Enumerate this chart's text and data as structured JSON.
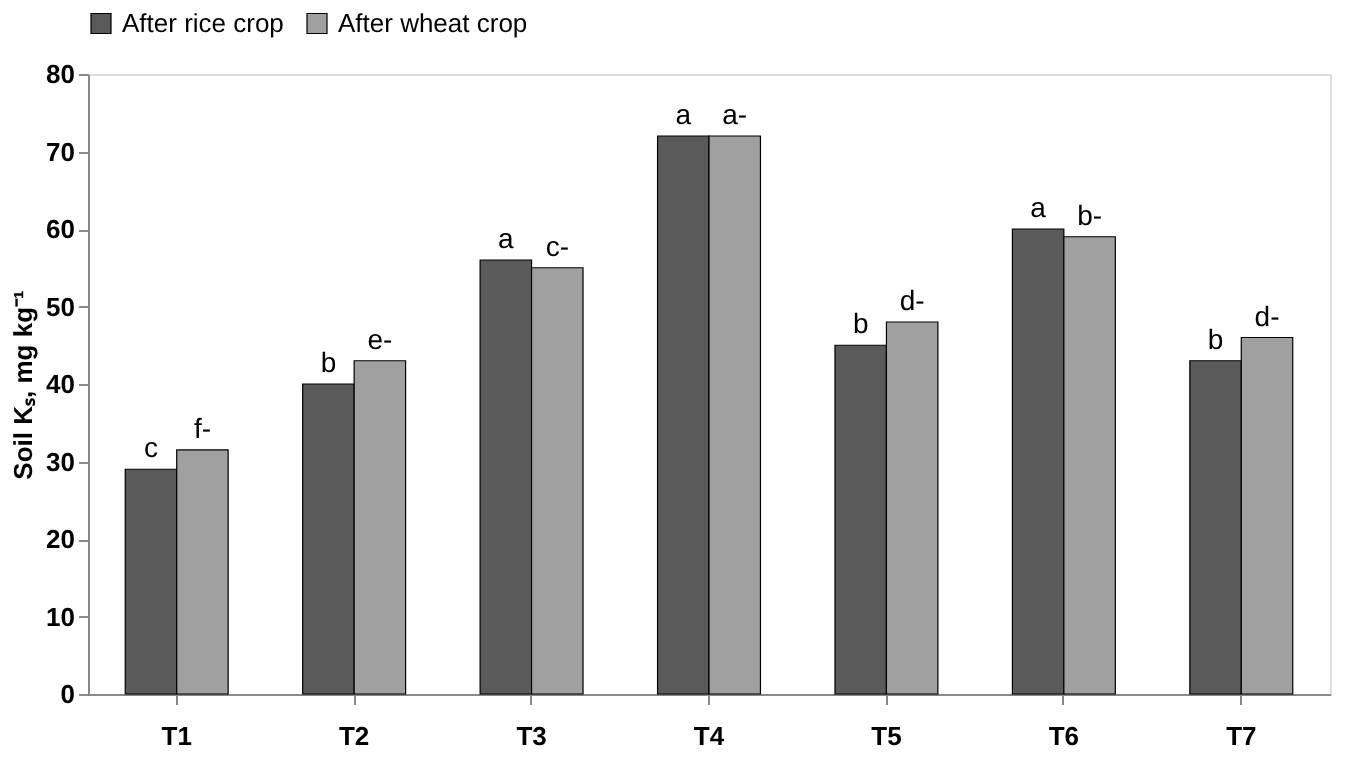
{
  "chart_data": {
    "type": "bar",
    "ylabel": "Soil Kₛ, mg kg⁻¹",
    "categories": [
      "T1",
      "T2",
      "T3",
      "T4",
      "T5",
      "T6",
      "T7"
    ],
    "series": [
      {
        "name": "After rice crop",
        "color": "#5a5a5a",
        "values": [
          29,
          40,
          56,
          72,
          45,
          60,
          43
        ],
        "value_labels": [
          "c",
          "b",
          "a",
          "a",
          "b",
          "a",
          "b"
        ]
      },
      {
        "name": "After wheat crop",
        "color": "#a0a0a0",
        "values": [
          31.5,
          43,
          55,
          72,
          48,
          59,
          46
        ],
        "value_labels": [
          "f-",
          "e-",
          "c-",
          "a-",
          "d-",
          "b-",
          "d-"
        ]
      }
    ],
    "ylim": [
      0,
      80
    ],
    "yticks": [
      0,
      10,
      20,
      30,
      40,
      50,
      60,
      70,
      80
    ],
    "grid": false,
    "legend": "top"
  }
}
